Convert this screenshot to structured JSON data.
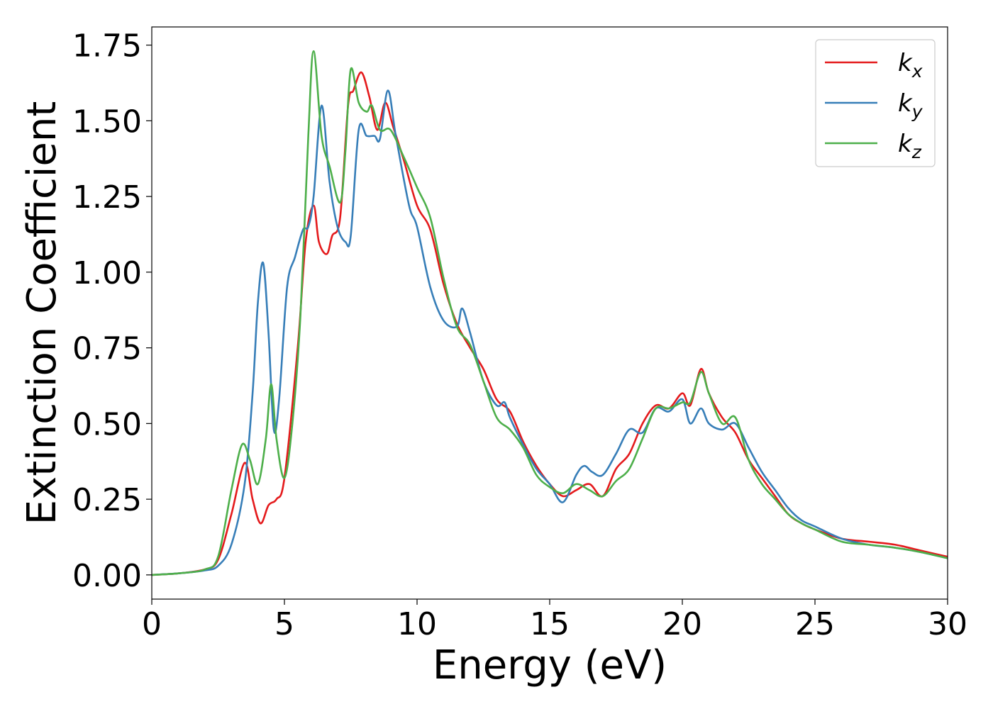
{
  "chart_data": {
    "type": "line",
    "xlabel": "Energy (eV)",
    "ylabel": "Extinction Coefficient",
    "xlim": [
      0,
      30
    ],
    "ylim": [
      -0.08,
      1.81
    ],
    "xticks": [
      0,
      5,
      10,
      15,
      20,
      25,
      30
    ],
    "xtick_labels": [
      "0",
      "5",
      "10",
      "15",
      "20",
      "25",
      "30"
    ],
    "yticks": [
      0,
      0.25,
      0.5,
      0.75,
      1.0,
      1.25,
      1.5,
      1.75
    ],
    "ytick_labels": [
      "0.00",
      "0.25",
      "0.50",
      "0.75",
      "1.00",
      "1.25",
      "1.50",
      "1.75"
    ],
    "grid": false,
    "legend_position": "top-right",
    "series": [
      {
        "name": "k",
        "subscript": "x",
        "color": "#e41a1c",
        "points": [
          [
            0,
            0
          ],
          [
            1,
            0.005
          ],
          [
            2,
            0.018
          ],
          [
            2.5,
            0.05
          ],
          [
            3,
            0.2
          ],
          [
            3.5,
            0.37
          ],
          [
            3.8,
            0.25
          ],
          [
            4.1,
            0.17
          ],
          [
            4.4,
            0.23
          ],
          [
            4.7,
            0.25
          ],
          [
            5,
            0.32
          ],
          [
            5.5,
            0.75
          ],
          [
            5.8,
            1.1
          ],
          [
            6.1,
            1.22
          ],
          [
            6.3,
            1.1
          ],
          [
            6.6,
            1.06
          ],
          [
            6.8,
            1.12
          ],
          [
            7.1,
            1.18
          ],
          [
            7.4,
            1.55
          ],
          [
            7.6,
            1.6
          ],
          [
            7.9,
            1.66
          ],
          [
            8.2,
            1.58
          ],
          [
            8.5,
            1.47
          ],
          [
            8.8,
            1.56
          ],
          [
            9.1,
            1.48
          ],
          [
            9.5,
            1.37
          ],
          [
            10,
            1.22
          ],
          [
            10.5,
            1.14
          ],
          [
            11,
            0.96
          ],
          [
            11.5,
            0.83
          ],
          [
            12,
            0.75
          ],
          [
            12.5,
            0.68
          ],
          [
            13,
            0.58
          ],
          [
            13.5,
            0.54
          ],
          [
            14,
            0.44
          ],
          [
            14.5,
            0.36
          ],
          [
            15,
            0.3
          ],
          [
            15.5,
            0.26
          ],
          [
            16,
            0.28
          ],
          [
            16.5,
            0.3
          ],
          [
            17,
            0.26
          ],
          [
            17.5,
            0.35
          ],
          [
            18,
            0.4
          ],
          [
            18.5,
            0.5
          ],
          [
            19,
            0.56
          ],
          [
            19.5,
            0.55
          ],
          [
            20,
            0.6
          ],
          [
            20.3,
            0.56
          ],
          [
            20.7,
            0.68
          ],
          [
            21,
            0.6
          ],
          [
            21.5,
            0.52
          ],
          [
            22,
            0.47
          ],
          [
            22.5,
            0.38
          ],
          [
            23,
            0.32
          ],
          [
            23.5,
            0.26
          ],
          [
            24,
            0.2
          ],
          [
            24.5,
            0.17
          ],
          [
            25,
            0.15
          ],
          [
            26,
            0.12
          ],
          [
            27,
            0.11
          ],
          [
            28,
            0.1
          ],
          [
            29,
            0.08
          ],
          [
            30,
            0.06
          ]
        ]
      },
      {
        "name": "k",
        "subscript": "y",
        "color": "#377eb8",
        "points": [
          [
            0,
            0
          ],
          [
            1,
            0.005
          ],
          [
            2,
            0.015
          ],
          [
            2.5,
            0.03
          ],
          [
            3,
            0.1
          ],
          [
            3.5,
            0.3
          ],
          [
            3.8,
            0.6
          ],
          [
            4,
            0.9
          ],
          [
            4.2,
            1.03
          ],
          [
            4.4,
            0.8
          ],
          [
            4.6,
            0.48
          ],
          [
            4.8,
            0.58
          ],
          [
            5.1,
            0.95
          ],
          [
            5.4,
            1.05
          ],
          [
            5.7,
            1.14
          ],
          [
            5.9,
            1.15
          ],
          [
            6.1,
            1.25
          ],
          [
            6.4,
            1.55
          ],
          [
            6.7,
            1.3
          ],
          [
            7,
            1.15
          ],
          [
            7.3,
            1.1
          ],
          [
            7.5,
            1.12
          ],
          [
            7.8,
            1.47
          ],
          [
            8.1,
            1.45
          ],
          [
            8.4,
            1.45
          ],
          [
            8.6,
            1.44
          ],
          [
            8.9,
            1.6
          ],
          [
            9.2,
            1.45
          ],
          [
            9.7,
            1.22
          ],
          [
            10,
            1.15
          ],
          [
            10.5,
            0.95
          ],
          [
            11,
            0.84
          ],
          [
            11.5,
            0.82
          ],
          [
            11.7,
            0.88
          ],
          [
            12,
            0.8
          ],
          [
            12.5,
            0.64
          ],
          [
            13,
            0.56
          ],
          [
            13.3,
            0.57
          ],
          [
            13.5,
            0.52
          ],
          [
            14,
            0.43
          ],
          [
            14.5,
            0.35
          ],
          [
            15,
            0.3
          ],
          [
            15.5,
            0.24
          ],
          [
            16,
            0.33
          ],
          [
            16.3,
            0.36
          ],
          [
            16.6,
            0.34
          ],
          [
            17,
            0.33
          ],
          [
            17.5,
            0.4
          ],
          [
            18,
            0.48
          ],
          [
            18.5,
            0.47
          ],
          [
            19,
            0.55
          ],
          [
            19.5,
            0.54
          ],
          [
            20,
            0.58
          ],
          [
            20.3,
            0.5
          ],
          [
            20.7,
            0.55
          ],
          [
            21,
            0.5
          ],
          [
            21.5,
            0.48
          ],
          [
            22,
            0.5
          ],
          [
            22.5,
            0.42
          ],
          [
            23,
            0.34
          ],
          [
            23.5,
            0.28
          ],
          [
            24,
            0.22
          ],
          [
            24.5,
            0.18
          ],
          [
            25,
            0.16
          ],
          [
            26,
            0.12
          ],
          [
            27,
            0.1
          ],
          [
            28,
            0.09
          ],
          [
            29,
            0.075
          ],
          [
            30,
            0.055
          ]
        ]
      },
      {
        "name": "k",
        "subscript": "z",
        "color": "#4daf4a",
        "points": [
          [
            0,
            0
          ],
          [
            1,
            0.005
          ],
          [
            2,
            0.018
          ],
          [
            2.5,
            0.06
          ],
          [
            3,
            0.28
          ],
          [
            3.4,
            0.43
          ],
          [
            3.7,
            0.38
          ],
          [
            4,
            0.3
          ],
          [
            4.3,
            0.45
          ],
          [
            4.5,
            0.63
          ],
          [
            4.7,
            0.45
          ],
          [
            5,
            0.32
          ],
          [
            5.3,
            0.5
          ],
          [
            5.6,
            0.85
          ],
          [
            5.9,
            1.45
          ],
          [
            6.1,
            1.73
          ],
          [
            6.4,
            1.45
          ],
          [
            6.7,
            1.35
          ],
          [
            7.1,
            1.23
          ],
          [
            7.3,
            1.4
          ],
          [
            7.5,
            1.67
          ],
          [
            7.8,
            1.56
          ],
          [
            8.1,
            1.53
          ],
          [
            8.3,
            1.55
          ],
          [
            8.6,
            1.47
          ],
          [
            9,
            1.47
          ],
          [
            9.5,
            1.38
          ],
          [
            10,
            1.28
          ],
          [
            10.5,
            1.18
          ],
          [
            11,
            0.98
          ],
          [
            11.5,
            0.82
          ],
          [
            12,
            0.76
          ],
          [
            12.5,
            0.64
          ],
          [
            13,
            0.52
          ],
          [
            13.5,
            0.48
          ],
          [
            14,
            0.42
          ],
          [
            14.5,
            0.33
          ],
          [
            15,
            0.29
          ],
          [
            15.5,
            0.27
          ],
          [
            16,
            0.3
          ],
          [
            16.5,
            0.28
          ],
          [
            17,
            0.26
          ],
          [
            17.5,
            0.31
          ],
          [
            18,
            0.35
          ],
          [
            18.5,
            0.45
          ],
          [
            19,
            0.55
          ],
          [
            19.5,
            0.55
          ],
          [
            20,
            0.57
          ],
          [
            20.3,
            0.57
          ],
          [
            20.7,
            0.67
          ],
          [
            21,
            0.6
          ],
          [
            21.5,
            0.5
          ],
          [
            22,
            0.52
          ],
          [
            22.5,
            0.38
          ],
          [
            23,
            0.3
          ],
          [
            23.5,
            0.25
          ],
          [
            24,
            0.2
          ],
          [
            24.5,
            0.17
          ],
          [
            25,
            0.15
          ],
          [
            26,
            0.11
          ],
          [
            27,
            0.1
          ],
          [
            28,
            0.09
          ],
          [
            29,
            0.075
          ],
          [
            30,
            0.055
          ]
        ]
      }
    ]
  }
}
